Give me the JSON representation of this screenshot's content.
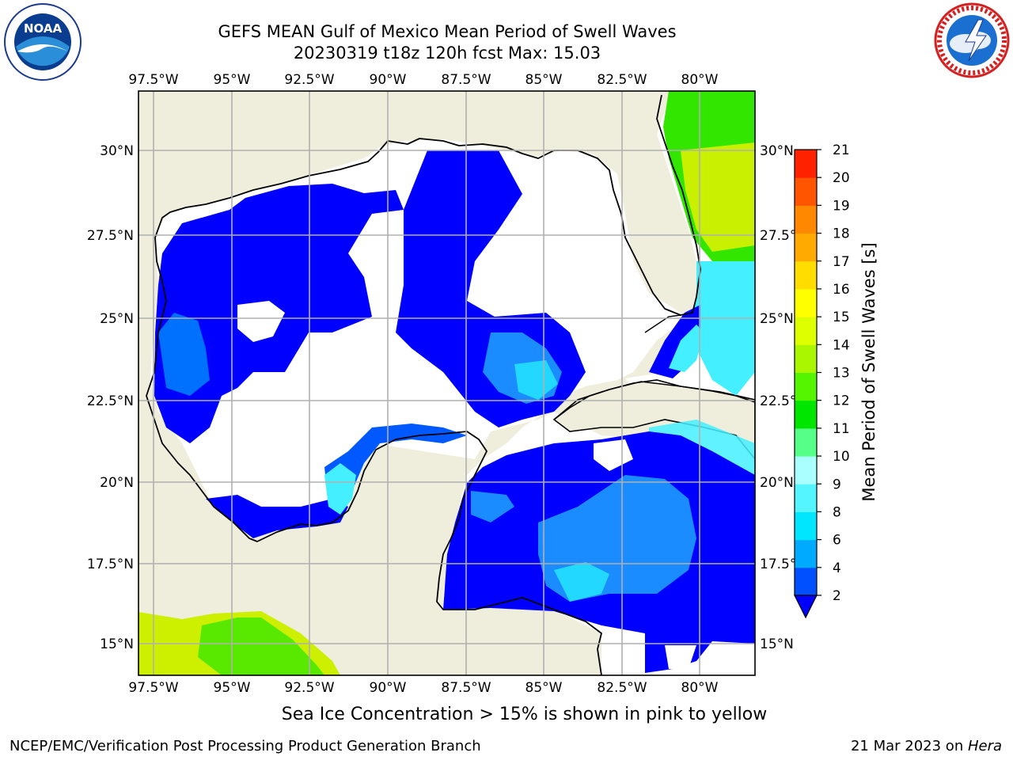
{
  "title_line1": "GEFS MEAN Gulf of Mexico Mean Period of Swell Waves",
  "title_line2": "20230319 t18z 120h fcst   Max: 15.03",
  "logos": {
    "left": {
      "name": "noaa-logo",
      "text": "NOAA"
    },
    "right": {
      "name": "national-weather-service-logo"
    }
  },
  "axes": {
    "lon_labels": [
      "97.5°W",
      "95°W",
      "92.5°W",
      "90°W",
      "87.5°W",
      "85°W",
      "82.5°W",
      "80°W"
    ],
    "lat_labels_left": [
      "30°N",
      "27.5°N",
      "25°N",
      "22.5°N",
      "20°N",
      "17.5°N",
      "15°N"
    ],
    "lat_labels_right": [
      "30°N",
      "27.5°N",
      "25°N",
      "22.5°N",
      "20°N",
      "17.5°N",
      "15°N"
    ]
  },
  "colorbar": {
    "label": "Mean Period of Swell Waves [s]",
    "ticks": [
      "2",
      "4",
      "6",
      "8",
      "9",
      "10",
      "11",
      "12",
      "13",
      "14",
      "15",
      "16",
      "17",
      "18",
      "19",
      "20",
      "21"
    ],
    "colors": [
      "#0050ff",
      "#00aaff",
      "#00e6ff",
      "#55f5ff",
      "#aaffff",
      "#55ff88",
      "#00e600",
      "#55f500",
      "#aaf500",
      "#ddff00",
      "#ffff00",
      "#ffdd00",
      "#ffaa00",
      "#ff8800",
      "#ff5500",
      "#ff2200"
    ],
    "under_color": "#0000ff"
  },
  "colors": {
    "land": "#efeedc",
    "swell_low": "#0000ff",
    "grid": "#b0b0b0"
  },
  "subnote": "Sea Ice Concentration > 15% is shown in pink to yellow",
  "credit_left": "NCEP/EMC/Verification Post Processing Product Generation Branch",
  "credit_right_date": "21 Mar 2023 on ",
  "credit_right_host": "Hera"
}
